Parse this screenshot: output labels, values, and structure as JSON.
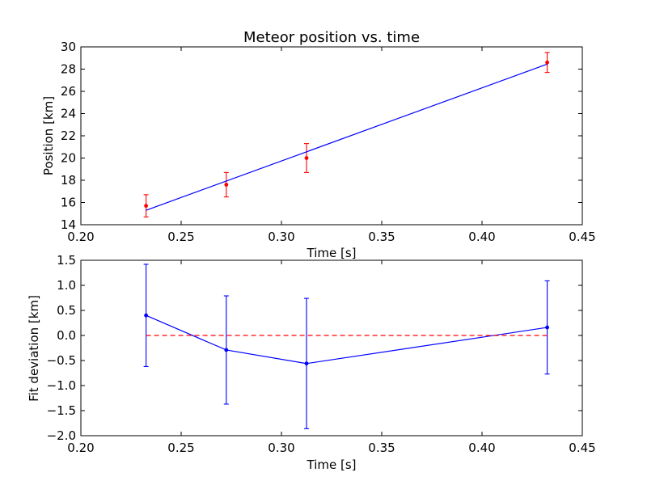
{
  "chart_data": [
    {
      "type": "line",
      "title": "Meteor position vs. time",
      "xlabel": "Time [s]",
      "ylabel": "Position [km]",
      "xlim": [
        0.2,
        0.45
      ],
      "ylim": [
        14,
        30
      ],
      "xticks": [
        "0.20",
        "0.25",
        "0.30",
        "0.35",
        "0.40",
        "0.45"
      ],
      "yticks": [
        "14",
        "16",
        "18",
        "20",
        "22",
        "24",
        "26",
        "28",
        "30"
      ],
      "grid": false,
      "series": [
        {
          "kind": "errorbar-points",
          "color": "#ff0000",
          "x": [
            0.2325,
            0.2725,
            0.3125,
            0.4325
          ],
          "y": [
            15.7,
            17.6,
            20.0,
            28.6
          ],
          "yerr": [
            1.0,
            1.1,
            1.3,
            0.9
          ]
        },
        {
          "kind": "fit-line",
          "color": "#0000ff",
          "x": [
            0.2325,
            0.4325
          ],
          "y": [
            15.3,
            28.45
          ]
        }
      ]
    },
    {
      "type": "line",
      "xlabel": "Time [s]",
      "ylabel": "Fit deviation [km]",
      "xlim": [
        0.2,
        0.45
      ],
      "ylim": [
        -2.0,
        1.5
      ],
      "xticks": [
        "0.20",
        "0.25",
        "0.30",
        "0.35",
        "0.40",
        "0.45"
      ],
      "yticks": [
        "−2.0",
        "−1.5",
        "−1.0",
        "−0.5",
        "0.0",
        "0.5",
        "1.0",
        "1.5"
      ],
      "grid": false,
      "series": [
        {
          "kind": "errorbar-line",
          "color": "#0000ff",
          "x": [
            0.2325,
            0.2725,
            0.3125,
            0.4325
          ],
          "y": [
            0.4,
            -0.29,
            -0.56,
            0.16
          ],
          "yerr": [
            1.02,
            1.08,
            1.3,
            0.93
          ]
        },
        {
          "kind": "reference-line",
          "color": "#ff0000",
          "style": "dashed",
          "x": [
            0.2325,
            0.4325
          ],
          "y": [
            0.0,
            0.0
          ]
        }
      ]
    }
  ]
}
